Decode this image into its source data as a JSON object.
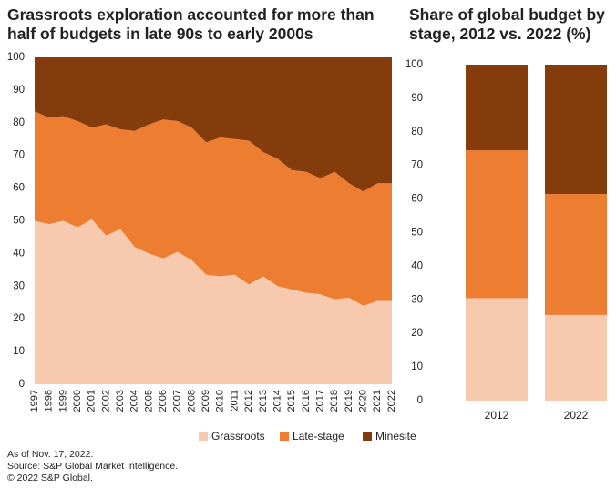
{
  "chart_data": [
    {
      "type": "area",
      "title": "Grassroots exploration accounted for more than half of budgets in late 90s to early 2000s",
      "categories": [
        "1997",
        "1998",
        "1999",
        "2000",
        "2001",
        "2002",
        "2003",
        "2004",
        "2005",
        "2006",
        "2007",
        "2008",
        "2009",
        "2010",
        "2011",
        "2012",
        "2013",
        "2014",
        "2015",
        "2016",
        "2017",
        "2018",
        "2019",
        "2020",
        "2021",
        "2022"
      ],
      "series": [
        {
          "name": "Grassroots",
          "color": "#f7c9ae",
          "values": [
            50,
            49,
            50,
            48,
            50.5,
            45.5,
            47.5,
            42,
            40,
            38.5,
            40.5,
            38,
            33.5,
            33,
            33.5,
            30.5,
            33,
            30,
            29,
            28,
            27.5,
            26,
            26.5,
            24,
            25.5,
            25.5
          ]
        },
        {
          "name": "Late-stage",
          "color": "#ed7d31",
          "values": [
            33.5,
            32.5,
            32,
            32.5,
            28,
            34,
            30.5,
            35.5,
            39.5,
            42.5,
            40,
            40.5,
            40.5,
            42.5,
            41.5,
            44,
            38,
            39,
            36.5,
            37,
            35.5,
            39,
            35,
            35,
            36,
            36
          ]
        },
        {
          "name": "Minesite",
          "color": "#843c0c",
          "values": [
            16.5,
            18.5,
            18,
            19.5,
            21.5,
            20.5,
            22,
            22.5,
            20.5,
            19,
            19.5,
            21.5,
            26,
            24.5,
            25,
            25.5,
            29,
            31,
            34.5,
            35,
            37,
            35,
            38.5,
            41,
            38.5,
            38.5
          ]
        }
      ],
      "ylim": [
        0,
        100
      ],
      "yticks": [
        0,
        10,
        20,
        30,
        40,
        50,
        60,
        70,
        80,
        90,
        100
      ],
      "stacked": true
    },
    {
      "type": "bar",
      "title": "Share of global budget by stage, 2012 vs. 2022 (%)",
      "categories": [
        "2012",
        "2022"
      ],
      "series": [
        {
          "name": "Grassroots",
          "color": "#f7c9ae",
          "values": [
            30.5,
            25.5
          ]
        },
        {
          "name": "Late-stage",
          "color": "#ed7d31",
          "values": [
            44,
            36
          ]
        },
        {
          "name": "Minesite",
          "color": "#843c0c",
          "values": [
            25.5,
            38.5
          ]
        }
      ],
      "ylim": [
        0,
        100
      ],
      "yticks": [
        0,
        10,
        20,
        30,
        40,
        50,
        60,
        70,
        80,
        90,
        100
      ],
      "stacked": true
    }
  ],
  "notes": [
    "As of Nov. 17, 2022.",
    "Source: S&P Global Market Intelligence.",
    "© 2022 S&P Global."
  ]
}
